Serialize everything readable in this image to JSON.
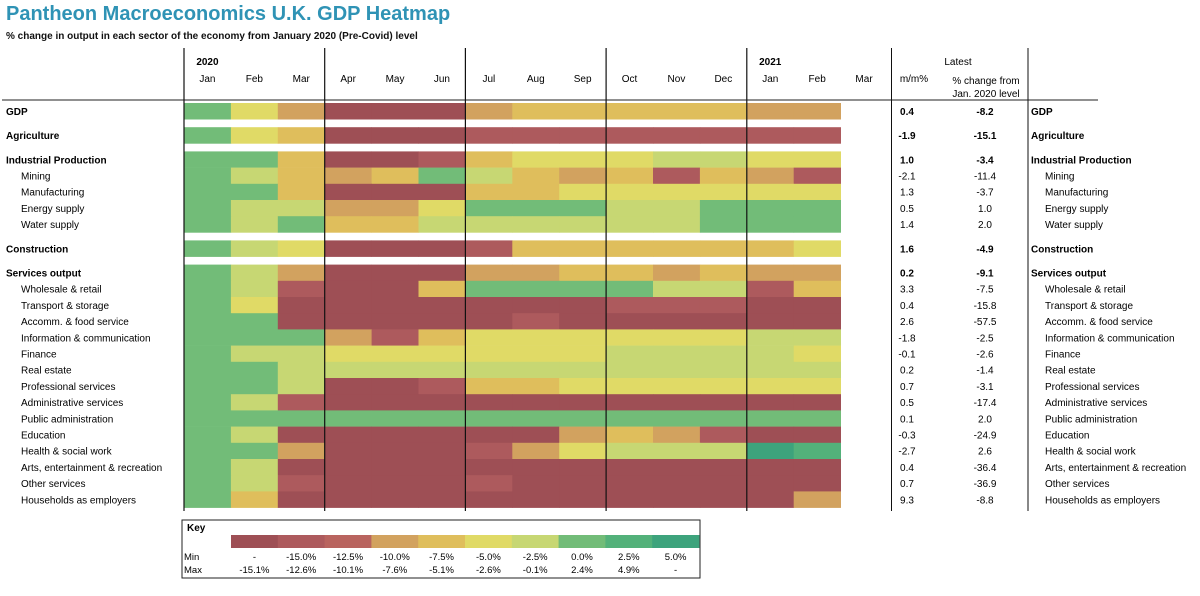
{
  "title": "Pantheon Macroeconomics U.K. GDP Heatmap",
  "subtitle": "% change in output in each sector of the economy from January 2020 (Pre-Covid) level",
  "chart_data": {
    "type": "heatmap",
    "years": [
      {
        "label": "2020",
        "start": 0
      },
      {
        "label": "2021",
        "start": 12
      }
    ],
    "months": [
      "Jan",
      "Feb",
      "Mar",
      "Apr",
      "May",
      "Jun",
      "Jul",
      "Aug",
      "Sep",
      "Oct",
      "Nov",
      "Dec",
      "Jan",
      "Feb",
      "Mar"
    ],
    "latest_header": "Latest",
    "mm_header": "m/m%",
    "pct_header_line1": "% change from",
    "pct_header_line2": "Jan. 2020 level",
    "colors": [
      "#9e4f55",
      "#ad5a5d",
      "#b9645f",
      "#d2a25f",
      "#dfbe5c",
      "#e0da66",
      "#c7d773",
      "#72bc78",
      "#53b17a",
      "#3da37c"
    ],
    "rows": [
      {
        "name": "GDP",
        "bold": true,
        "group_start": true,
        "mm": "0.4",
        "pct": "-8.2",
        "cells": [
          7,
          5,
          3,
          0,
          0,
          0,
          3,
          4,
          4,
          4,
          4,
          4,
          3,
          3,
          null
        ]
      },
      {
        "name": "Agriculture",
        "bold": true,
        "group_start": true,
        "mm": "-1.9",
        "pct": "-15.1",
        "cells": [
          7,
          5,
          4,
          0,
          0,
          0,
          1,
          1,
          1,
          1,
          1,
          1,
          1,
          1,
          null
        ]
      },
      {
        "name": "Industrial Production",
        "bold": true,
        "group_start": true,
        "mm": "1.0",
        "pct": "-3.4",
        "cells": [
          7,
          7,
          4,
          0,
          0,
          1,
          4,
          5,
          5,
          5,
          6,
          6,
          5,
          5,
          null
        ]
      },
      {
        "name": "Mining",
        "bold": false,
        "mm": "-2.1",
        "pct": "-11.4",
        "cells": [
          7,
          6,
          4,
          3,
          4,
          7,
          6,
          4,
          3,
          4,
          1,
          4,
          3,
          1,
          null
        ]
      },
      {
        "name": "Manufacturing",
        "bold": false,
        "mm": "1.3",
        "pct": "-3.7",
        "cells": [
          7,
          7,
          4,
          0,
          0,
          0,
          4,
          4,
          5,
          5,
          5,
          5,
          5,
          5,
          null
        ]
      },
      {
        "name": "Energy supply",
        "bold": false,
        "mm": "0.5",
        "pct": "1.0",
        "cells": [
          7,
          6,
          6,
          3,
          3,
          5,
          7,
          7,
          7,
          6,
          6,
          7,
          7,
          7,
          null
        ]
      },
      {
        "name": "Water supply",
        "bold": false,
        "mm": "1.4",
        "pct": "2.0",
        "cells": [
          7,
          6,
          7,
          4,
          4,
          6,
          6,
          6,
          6,
          6,
          6,
          7,
          7,
          7,
          null
        ]
      },
      {
        "name": "Construction",
        "bold": true,
        "group_start": true,
        "mm": "1.6",
        "pct": "-4.9",
        "cells": [
          7,
          6,
          5,
          0,
          0,
          0,
          1,
          4,
          4,
          4,
          4,
          4,
          4,
          5,
          null
        ]
      },
      {
        "name": "Services output",
        "bold": true,
        "group_start": true,
        "mm": "0.2",
        "pct": "-9.1",
        "cells": [
          7,
          6,
          3,
          0,
          0,
          0,
          3,
          3,
          4,
          4,
          3,
          4,
          3,
          3,
          null
        ]
      },
      {
        "name": "Wholesale & retail",
        "bold": false,
        "mm": "3.3",
        "pct": "-7.5",
        "cells": [
          7,
          6,
          1,
          0,
          0,
          4,
          7,
          7,
          7,
          7,
          6,
          6,
          1,
          4,
          null
        ]
      },
      {
        "name": "Transport & storage",
        "bold": false,
        "mm": "0.4",
        "pct": "-15.8",
        "cells": [
          7,
          5,
          0,
          0,
          0,
          0,
          0,
          0,
          0,
          1,
          1,
          1,
          0,
          0,
          null
        ]
      },
      {
        "name": "Accomm. & food service",
        "bold": false,
        "mm": "2.6",
        "pct": "-57.5",
        "cells": [
          7,
          7,
          0,
          0,
          0,
          0,
          0,
          1,
          0,
          0,
          0,
          0,
          0,
          0,
          null
        ]
      },
      {
        "name": "Information & communication",
        "bold": false,
        "mm": "-1.8",
        "pct": "-2.5",
        "cells": [
          7,
          7,
          7,
          3,
          1,
          4,
          5,
          5,
          5,
          5,
          5,
          5,
          6,
          6,
          null
        ]
      },
      {
        "name": "Finance",
        "bold": false,
        "mm": "-0.1",
        "pct": "-2.6",
        "cells": [
          7,
          6,
          6,
          5,
          5,
          5,
          5,
          5,
          5,
          6,
          6,
          6,
          6,
          5,
          null
        ]
      },
      {
        "name": "Real estate",
        "bold": false,
        "mm": "0.2",
        "pct": "-1.4",
        "cells": [
          7,
          7,
          6,
          6,
          6,
          6,
          6,
          6,
          6,
          6,
          6,
          6,
          6,
          6,
          null
        ]
      },
      {
        "name": "Professional services",
        "bold": false,
        "mm": "0.7",
        "pct": "-3.1",
        "cells": [
          7,
          7,
          6,
          0,
          0,
          1,
          4,
          4,
          5,
          5,
          5,
          5,
          5,
          5,
          null
        ]
      },
      {
        "name": "Administrative services",
        "bold": false,
        "mm": "0.5",
        "pct": "-17.4",
        "cells": [
          7,
          6,
          1,
          0,
          0,
          0,
          0,
          0,
          0,
          0,
          0,
          0,
          0,
          0,
          null
        ]
      },
      {
        "name": "Public administration",
        "bold": false,
        "mm": "0.1",
        "pct": "2.0",
        "cells": [
          7,
          7,
          7,
          7,
          7,
          7,
          7,
          7,
          7,
          7,
          7,
          7,
          7,
          7,
          null
        ]
      },
      {
        "name": "Education",
        "bold": false,
        "mm": "-0.3",
        "pct": "-24.9",
        "cells": [
          7,
          6,
          0,
          0,
          0,
          0,
          0,
          0,
          3,
          4,
          3,
          1,
          0,
          0,
          null
        ]
      },
      {
        "name": "Health & social work",
        "bold": false,
        "mm": "-2.7",
        "pct": "2.6",
        "cells": [
          7,
          7,
          3,
          0,
          0,
          0,
          1,
          3,
          5,
          6,
          6,
          6,
          9,
          8,
          null
        ]
      },
      {
        "name": "Arts, entertainment & recreation",
        "bold": false,
        "mm": "0.4",
        "pct": "-36.4",
        "cells": [
          7,
          6,
          0,
          0,
          0,
          0,
          0,
          0,
          0,
          0,
          0,
          0,
          0,
          0,
          null
        ]
      },
      {
        "name": "Other services",
        "bold": false,
        "mm": "0.7",
        "pct": "-36.9",
        "cells": [
          7,
          6,
          1,
          0,
          0,
          0,
          1,
          0,
          0,
          0,
          0,
          0,
          0,
          0,
          null
        ]
      },
      {
        "name": "Households as employers",
        "bold": false,
        "mm": "9.3",
        "pct": "-8.8",
        "cells": [
          7,
          4,
          0,
          0,
          0,
          0,
          0,
          0,
          0,
          0,
          0,
          0,
          0,
          3,
          null
        ]
      }
    ],
    "key": {
      "title": "Key",
      "min_label": "Min",
      "max_label": "Max",
      "min": [
        "-",
        "-15.0%",
        "-12.5%",
        "-10.0%",
        "-7.5%",
        "-5.0%",
        "-2.5%",
        "0.0%",
        "2.5%",
        "5.0%"
      ],
      "max": [
        "-15.1%",
        "-12.6%",
        "-10.1%",
        "-7.6%",
        "-5.1%",
        "-2.6%",
        "-0.1%",
        "2.4%",
        "4.9%",
        "-"
      ]
    }
  }
}
